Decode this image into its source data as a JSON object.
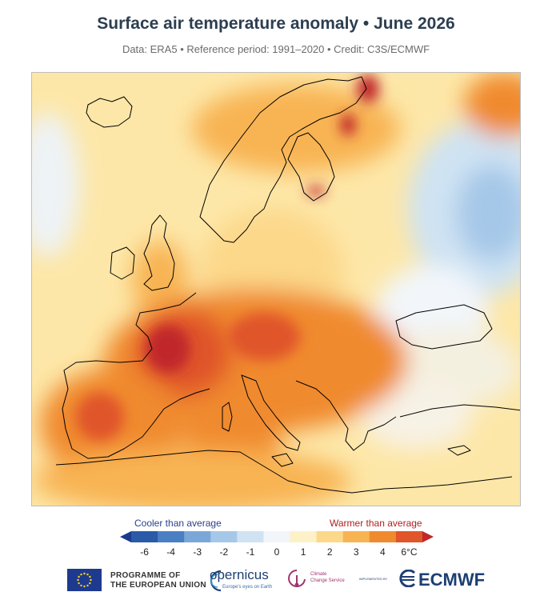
{
  "title": "Surface air temperature anomaly • June 2026",
  "subtitle": "Data: ERA5 • Reference period: 1991–2020 • Credit: C3S/ECMWF",
  "legend": {
    "cooler_label": "Cooler than average",
    "warmer_label": "Warmer than average",
    "ticks": [
      "-6",
      "-4",
      "-3",
      "-2",
      "-1",
      "0",
      "1",
      "2",
      "3",
      "4",
      "6°C"
    ],
    "colors": [
      "#1b3a8c",
      "#2a5aa8",
      "#4b7fc4",
      "#7ba7d8",
      "#a6c8e8",
      "#cfe3f3",
      "#f2f6fa",
      "#fdf1c7",
      "#fcd88a",
      "#f8b452",
      "#f08a2e",
      "#e0552a",
      "#c0262a"
    ]
  },
  "footer": {
    "eu_line1": "PROGRAMME OF",
    "eu_line2": "THE EUROPEAN UNION",
    "copernicus": "opernicus",
    "copernicus_tag": "Europe's eyes on Earth",
    "c3s_line1": "Climate",
    "c3s_line2": "Change Service",
    "implemented": "IMPLEMENTED BY",
    "ecmwf": "ECMWF"
  }
}
